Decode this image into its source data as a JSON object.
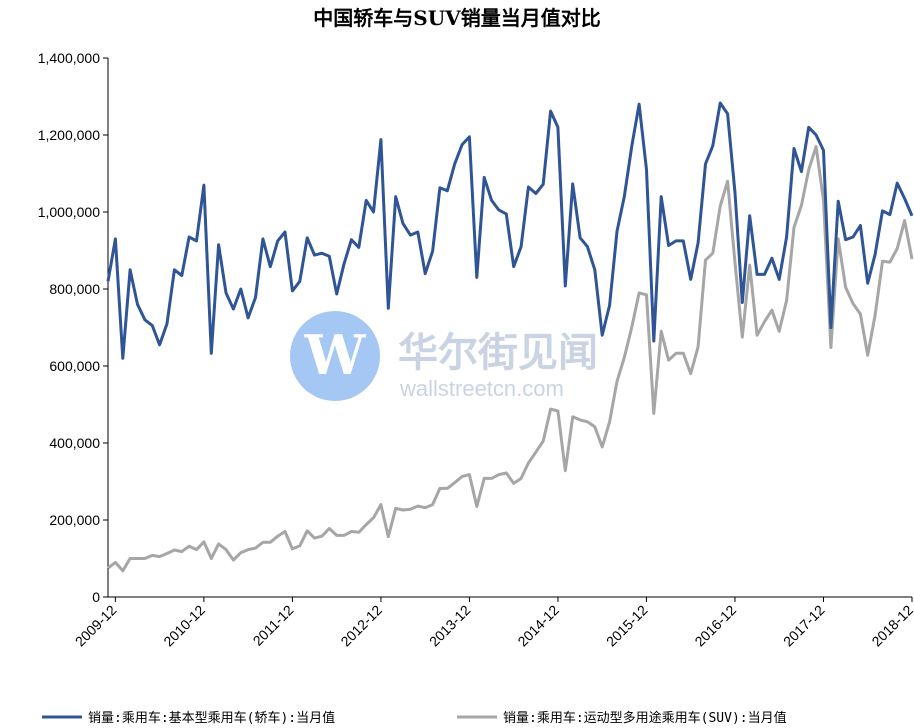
{
  "chart_data": {
    "type": "line",
    "title": "中国轿车与SUV销量当月值对比",
    "ylim": [
      0,
      1400000
    ],
    "yticks": [
      "0",
      "200,000",
      "400,000",
      "600,000",
      "800,000",
      "1,000,000",
      "1,200,000",
      "1,400,000"
    ],
    "x_start": "2009-11",
    "xticks": [
      "2009-12",
      "2010-12",
      "2011-12",
      "2012-12",
      "2013-12",
      "2014-12",
      "2015-12",
      "2016-12",
      "2017-12",
      "2018-12"
    ],
    "grid": false,
    "legend": "bottom",
    "series": [
      {
        "name": "销量:乘用车:基本型乘用车(轿车):当月值",
        "color": "#2f5597",
        "values": [
          820000,
          930000,
          620000,
          850000,
          760000,
          720000,
          705000,
          655000,
          710000,
          850000,
          835000,
          935000,
          925000,
          1070000,
          633000,
          915000,
          790000,
          748000,
          800000,
          725000,
          778000,
          930000,
          858000,
          925000,
          948000,
          795000,
          820000,
          933000,
          888000,
          893000,
          885000,
          787000,
          865000,
          928000,
          908000,
          1030000,
          1000000,
          1188000,
          750000,
          1040000,
          970000,
          940000,
          948000,
          840000,
          898000,
          1063000,
          1055000,
          1125000,
          1175000,
          1195000,
          830000,
          1090000,
          1030000,
          1005000,
          995000,
          858000,
          910000,
          1065000,
          1048000,
          1072000,
          1262000,
          1220000,
          808000,
          1073000,
          933000,
          910000,
          850000,
          680000,
          758000,
          950000,
          1040000,
          1170000,
          1280000,
          1110000,
          665000,
          1040000,
          913000,
          925000,
          925000,
          825000,
          920000,
          1125000,
          1172000,
          1283000,
          1255000,
          1050000,
          765000,
          990000,
          838000,
          838000,
          880000,
          825000,
          935000,
          1165000,
          1105000,
          1220000,
          1200000,
          1160000,
          700000,
          1028000,
          928000,
          935000,
          965000,
          815000,
          890000,
          1003000,
          993000,
          1075000,
          1035000,
          990000
        ]
      },
      {
        "name": "销量:乘用车:运动型多用途乘用车(SUV):当月值",
        "color": "#a6a6a6",
        "values": [
          75000,
          90000,
          68000,
          100000,
          100000,
          100000,
          108000,
          105000,
          113000,
          122000,
          118000,
          132000,
          123000,
          143000,
          100000,
          138000,
          123000,
          96000,
          115000,
          123000,
          127000,
          142000,
          142000,
          158000,
          170000,
          125000,
          133000,
          172000,
          153000,
          158000,
          178000,
          160000,
          160000,
          170000,
          168000,
          188000,
          206000,
          240000,
          157000,
          230000,
          226000,
          228000,
          236000,
          232000,
          240000,
          282000,
          282000,
          297000,
          313000,
          318000,
          235000,
          308000,
          308000,
          318000,
          322000,
          295000,
          308000,
          348000,
          376000,
          405000,
          488000,
          483000,
          328000,
          468000,
          460000,
          455000,
          442000,
          390000,
          455000,
          560000,
          622000,
          700000,
          790000,
          785000,
          477000,
          690000,
          615000,
          633000,
          633000,
          580000,
          650000,
          875000,
          893000,
          1015000,
          1080000,
          868000,
          675000,
          862000,
          680000,
          715000,
          745000,
          690000,
          770000,
          960000,
          1017000,
          1110000,
          1170000,
          1030000,
          648000,
          930000,
          805000,
          762000,
          735000,
          628000,
          732000,
          872000,
          870000,
          905000,
          978000,
          878000
        ]
      }
    ]
  },
  "watermark": {
    "logo_letter": "W",
    "name_cn": "华尔街见闻",
    "name_en": "wallstreetcn.com"
  }
}
